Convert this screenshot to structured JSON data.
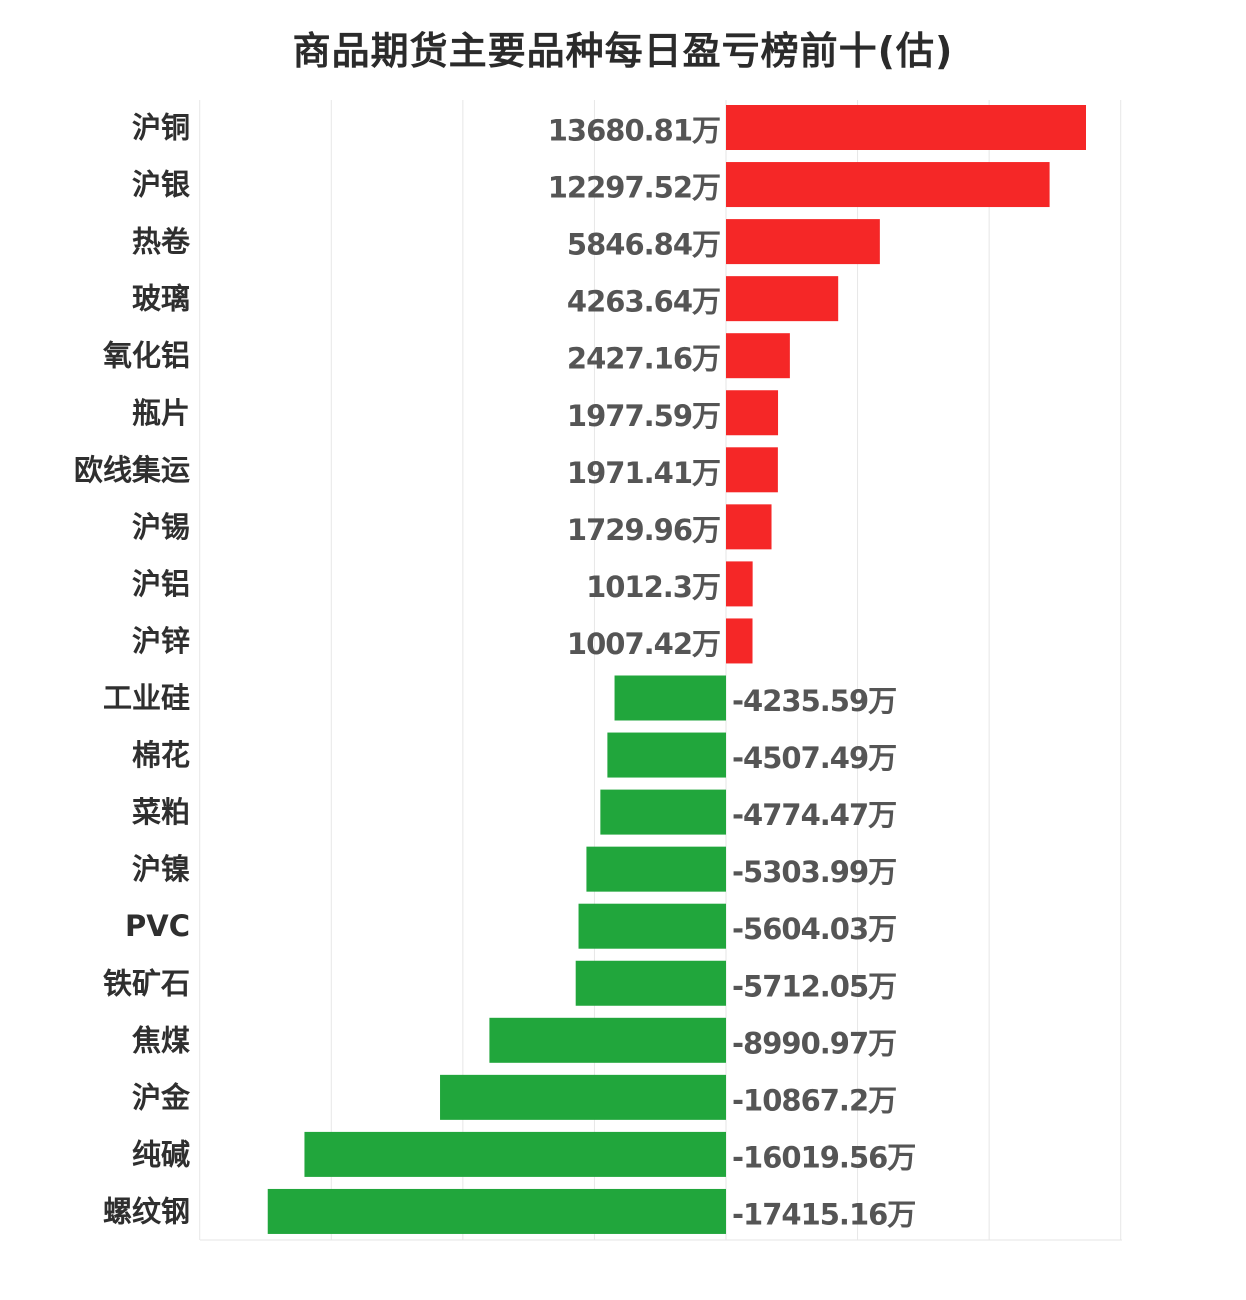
{
  "chart_data": {
    "type": "bar",
    "orientation": "horizontal",
    "title": "商品期货主要品种每日盈亏榜前十(估)",
    "unit": "万",
    "categories": [
      "沪铜",
      "沪银",
      "热卷",
      "玻璃",
      "氧化铝",
      "瓶片",
      "欧线集运",
      "沪锡",
      "沪铝",
      "沪锌",
      "工业硅",
      "棉花",
      "菜粕",
      "沪镍",
      "PVC",
      "铁矿石",
      "焦煤",
      "沪金",
      "纯碱",
      "螺纹钢"
    ],
    "values": [
      13680.81,
      12297.52,
      5846.84,
      4263.64,
      2427.16,
      1977.59,
      1971.41,
      1729.96,
      1012.3,
      1007.42,
      -4235.59,
      -4507.49,
      -4774.47,
      -5303.99,
      -5604.03,
      -5712.05,
      -8990.97,
      -10867.2,
      -16019.56,
      -17415.16
    ],
    "value_labels": [
      "13680.81万",
      "12297.52万",
      "5846.84万",
      "4263.64万",
      "2427.16万",
      "1977.59万",
      "1971.41万",
      "1729.96万",
      "1012.3万",
      "1007.42万",
      "-4235.59万",
      "-4507.49万",
      "-4774.47万",
      "-5303.99万",
      "-5604.03万",
      "-5712.05万",
      "-8990.97万",
      "-10867.2万",
      "-16019.56万",
      "-17415.16万"
    ],
    "xlim": [
      -20000,
      15000
    ],
    "grid": true,
    "colors": {
      "positive": "#f52727",
      "negative": "#21a63c",
      "grid": "#e6e6e6",
      "label": "#2f2f2f",
      "value": "#555555"
    }
  }
}
